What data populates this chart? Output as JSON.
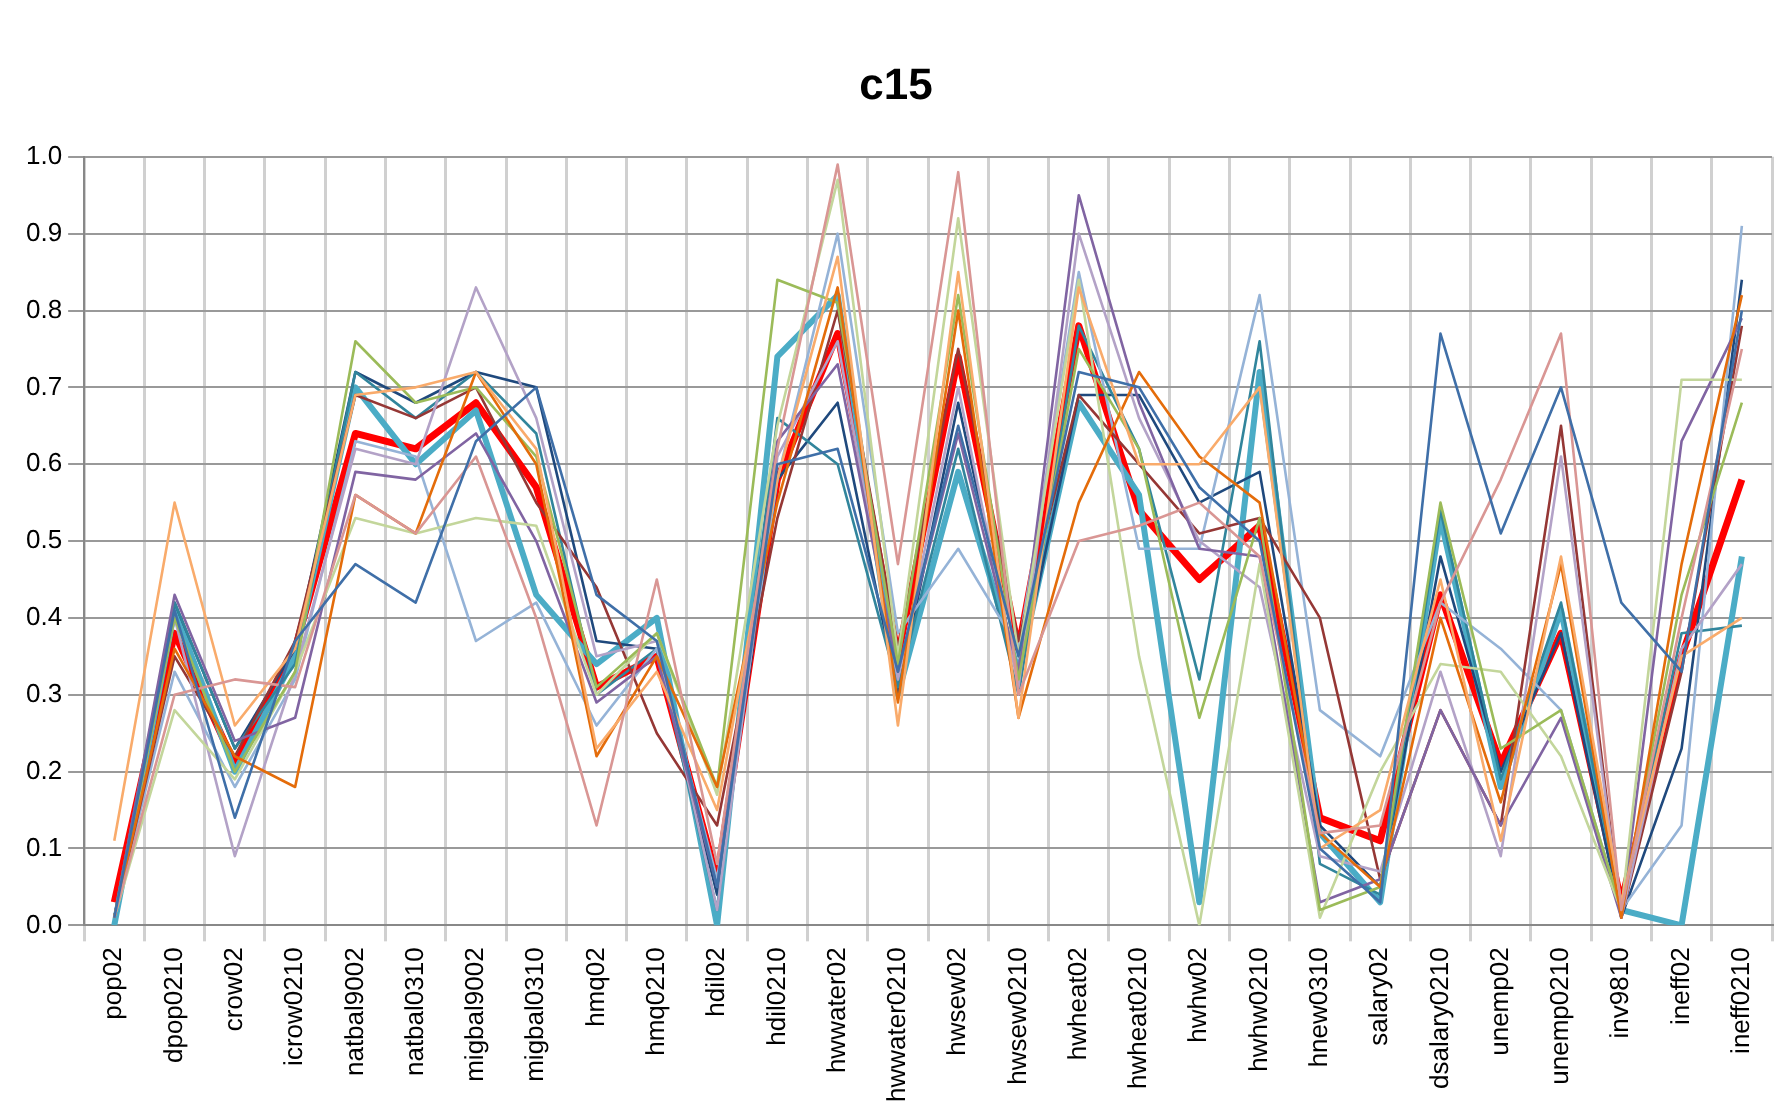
{
  "chart_data": {
    "type": "line",
    "title": "c15",
    "categories": [
      "pop02",
      "dpop0210",
      "crow02",
      "icrow0210",
      "natbal9002",
      "natbal0310",
      "migbal9002",
      "migbal0310",
      "hmq02",
      "hmq0210",
      "hdil02",
      "hdil0210",
      "hwwater02",
      "hwwater0210",
      "hwsew02",
      "hwsew0210",
      "hwheat02",
      "hwheat0210",
      "hwhw02",
      "hwhw0210",
      "hnew0310",
      "salary02",
      "dsalary0210",
      "unemp02",
      "unemp0210",
      "inv9810",
      "ineff02",
      "ineff0210"
    ],
    "ylim": [
      0,
      1
    ],
    "yticks": [
      {
        "value": 0,
        "label": "0.0"
      },
      0.1,
      0.2,
      0.3,
      0.4,
      0.5,
      0.6,
      0.7,
      0.8,
      0.9,
      {
        "value": 1,
        "label": "1.0"
      }
    ],
    "grid": true,
    "legend": false,
    "marker": "none",
    "line_style": "solid",
    "series": [
      {
        "color": "#3f6fa8",
        "values": [
          0.01,
          0.41,
          0.14,
          0.37,
          0.47,
          0.42,
          0.63,
          0.7,
          0.43,
          0.37,
          0.05,
          0.6,
          0.62,
          0.33,
          0.65,
          0.35,
          0.72,
          0.7,
          0.57,
          0.5,
          0.1,
          0.03,
          0.77,
          0.51,
          0.7,
          0.42,
          0.33,
          0.8
        ]
      },
      {
        "color": "#d99694",
        "values": [
          0.01,
          0.3,
          0.32,
          0.31,
          0.56,
          0.51,
          0.61,
          0.4,
          0.13,
          0.45,
          0.08,
          0.62,
          0.99,
          0.47,
          0.98,
          0.3,
          0.5,
          0.52,
          0.55,
          0.48,
          0.12,
          0.13,
          0.42,
          0.58,
          0.77,
          0.02,
          0.4,
          0.75
        ]
      },
      {
        "color": "#f9ab6b",
        "values": [
          0.11,
          0.55,
          0.26,
          0.36,
          0.69,
          0.7,
          0.72,
          0.62,
          0.23,
          0.33,
          0.15,
          0.58,
          0.87,
          0.26,
          0.85,
          0.27,
          0.83,
          0.6,
          0.6,
          0.7,
          0.1,
          0.15,
          0.45,
          0.11,
          0.48,
          0.03,
          0.35,
          0.4
        ]
      },
      {
        "color": "#e46c0a",
        "values": [
          0.01,
          0.36,
          0.22,
          0.18,
          0.56,
          0.51,
          0.72,
          0.6,
          0.22,
          0.35,
          0.18,
          0.55,
          0.83,
          0.29,
          0.8,
          0.27,
          0.55,
          0.72,
          0.61,
          0.55,
          0.12,
          0.05,
          0.4,
          0.16,
          0.47,
          0.01,
          0.47,
          0.82
        ]
      },
      {
        "color": "#9bbb59",
        "values": [
          0.01,
          0.4,
          0.2,
          0.33,
          0.76,
          0.68,
          0.7,
          0.61,
          0.31,
          0.38,
          0.18,
          0.84,
          0.81,
          0.34,
          0.82,
          0.32,
          0.75,
          0.62,
          0.27,
          0.53,
          0.02,
          0.05,
          0.55,
          0.23,
          0.28,
          0.02,
          0.43,
          0.68
        ]
      },
      {
        "color": "#c3d69b",
        "values": [
          0.01,
          0.28,
          0.19,
          0.33,
          0.53,
          0.51,
          0.53,
          0.52,
          0.3,
          0.38,
          0.17,
          0.65,
          0.97,
          0.35,
          0.92,
          0.35,
          0.84,
          0.35,
          0.0,
          0.47,
          0.01,
          0.2,
          0.34,
          0.33,
          0.22,
          0.02,
          0.71,
          0.71
        ]
      },
      {
        "color": "#8064a2",
        "values": [
          0.01,
          0.43,
          0.24,
          0.27,
          0.59,
          0.58,
          0.64,
          0.5,
          0.29,
          0.35,
          0.05,
          0.63,
          0.73,
          0.33,
          0.64,
          0.33,
          0.95,
          0.68,
          0.49,
          0.48,
          0.03,
          0.06,
          0.28,
          0.13,
          0.27,
          0.01,
          0.63,
          0.79
        ]
      },
      {
        "color": "#b3a2c7",
        "values": [
          0.01,
          0.4,
          0.09,
          0.33,
          0.62,
          0.6,
          0.83,
          0.66,
          0.35,
          0.37,
          0.02,
          0.61,
          0.76,
          0.32,
          0.7,
          0.31,
          0.9,
          0.66,
          0.5,
          0.44,
          0.09,
          0.07,
          0.33,
          0.09,
          0.61,
          0.01,
          0.36,
          0.47
        ]
      },
      {
        "color": "#953735",
        "values": [
          0.01,
          0.35,
          0.22,
          0.37,
          0.69,
          0.66,
          0.7,
          0.55,
          0.44,
          0.25,
          0.13,
          0.53,
          0.8,
          0.36,
          0.75,
          0.37,
          0.69,
          0.6,
          0.51,
          0.53,
          0.4,
          0.06,
          0.28,
          0.13,
          0.65,
          0.01,
          0.33,
          0.78
        ]
      },
      {
        "color": "#95b3d7",
        "values": [
          0.01,
          0.33,
          0.18,
          0.32,
          0.63,
          0.61,
          0.37,
          0.42,
          0.26,
          0.36,
          0.06,
          0.58,
          0.9,
          0.38,
          0.49,
          0.36,
          0.85,
          0.49,
          0.49,
          0.82,
          0.28,
          0.22,
          0.42,
          0.36,
          0.28,
          0.02,
          0.13,
          0.91
        ]
      },
      {
        "color": "#31859c",
        "values": [
          0.01,
          0.42,
          0.23,
          0.34,
          0.72,
          0.66,
          0.72,
          0.64,
          0.3,
          0.36,
          0.02,
          0.66,
          0.6,
          0.31,
          0.62,
          0.3,
          0.78,
          0.62,
          0.32,
          0.76,
          0.08,
          0.04,
          0.54,
          0.19,
          0.42,
          0.02,
          0.38,
          0.39
        ]
      },
      {
        "color": "#1f497d",
        "values": [
          0.01,
          0.42,
          0.23,
          0.36,
          0.72,
          0.68,
          0.72,
          0.7,
          0.37,
          0.36,
          0.04,
          0.58,
          0.68,
          0.3,
          0.68,
          0.32,
          0.69,
          0.69,
          0.55,
          0.59,
          0.13,
          0.05,
          0.48,
          0.2,
          0.38,
          0.01,
          0.23,
          0.84
        ]
      },
      {
        "color": "#4bacc6",
        "values": [
          0.0,
          0.41,
          0.2,
          0.35,
          0.7,
          0.6,
          0.67,
          0.43,
          0.34,
          0.4,
          0.0,
          0.74,
          0.82,
          0.3,
          0.59,
          0.33,
          0.68,
          0.56,
          0.03,
          0.72,
          0.12,
          0.03,
          0.53,
          0.18,
          0.41,
          0.02,
          0.0,
          0.48
        ]
      },
      {
        "color": "#ff0000",
        "values": [
          0.03,
          0.38,
          0.21,
          0.36,
          0.64,
          0.62,
          0.68,
          0.57,
          0.31,
          0.35,
          0.06,
          0.58,
          0.77,
          0.35,
          0.74,
          0.36,
          0.78,
          0.54,
          0.45,
          0.52,
          0.14,
          0.11,
          0.43,
          0.21,
          0.38,
          0.03,
          0.35,
          0.58
        ]
      }
    ]
  }
}
